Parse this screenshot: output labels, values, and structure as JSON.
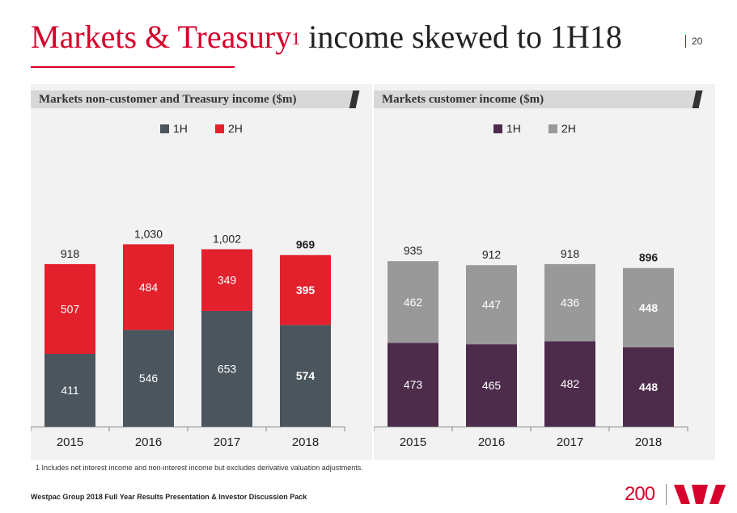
{
  "page": {
    "title_red": "Markets & Treasury",
    "title_sup": "1",
    "title_rest": " income skewed to 1H18",
    "page_number": "20",
    "footnote": "1 Includes net interest income and non-interest income but excludes derivative valuation adjustments.",
    "footer": "Westpac Group 2018 Full Year Results Presentation & Investor Discussion Pack",
    "logo_number": "200"
  },
  "colors": {
    "brand_red": "#d5002b",
    "left_1h": "#4a555d",
    "left_2h": "#e3212d",
    "right_1h": "#4d2b4b",
    "right_2h": "#999999"
  },
  "chart_data": [
    {
      "type": "bar",
      "stacked": true,
      "title": "Markets non-customer and Treasury income ($m)",
      "categories": [
        "2015",
        "2016",
        "2017",
        "2018"
      ],
      "series": [
        {
          "name": "1H",
          "values": [
            411,
            546,
            653,
            574
          ]
        },
        {
          "name": "2H",
          "values": [
            507,
            484,
            349,
            395
          ]
        }
      ],
      "totals": [
        "918",
        "1,030",
        "1,002",
        "969"
      ],
      "highlight_category": "2018",
      "ylim": [
        0,
        1050
      ],
      "legend": "top-center"
    },
    {
      "type": "bar",
      "stacked": true,
      "title": "Markets customer income ($m)",
      "categories": [
        "2015",
        "2016",
        "2017",
        "2018"
      ],
      "series": [
        {
          "name": "1H",
          "values": [
            473,
            465,
            482,
            448
          ]
        },
        {
          "name": "2H",
          "values": [
            462,
            447,
            436,
            448
          ]
        }
      ],
      "totals": [
        "935",
        "912",
        "918",
        "896"
      ],
      "highlight_category": "2018",
      "ylim": [
        0,
        1050
      ],
      "legend": "top-center"
    }
  ]
}
